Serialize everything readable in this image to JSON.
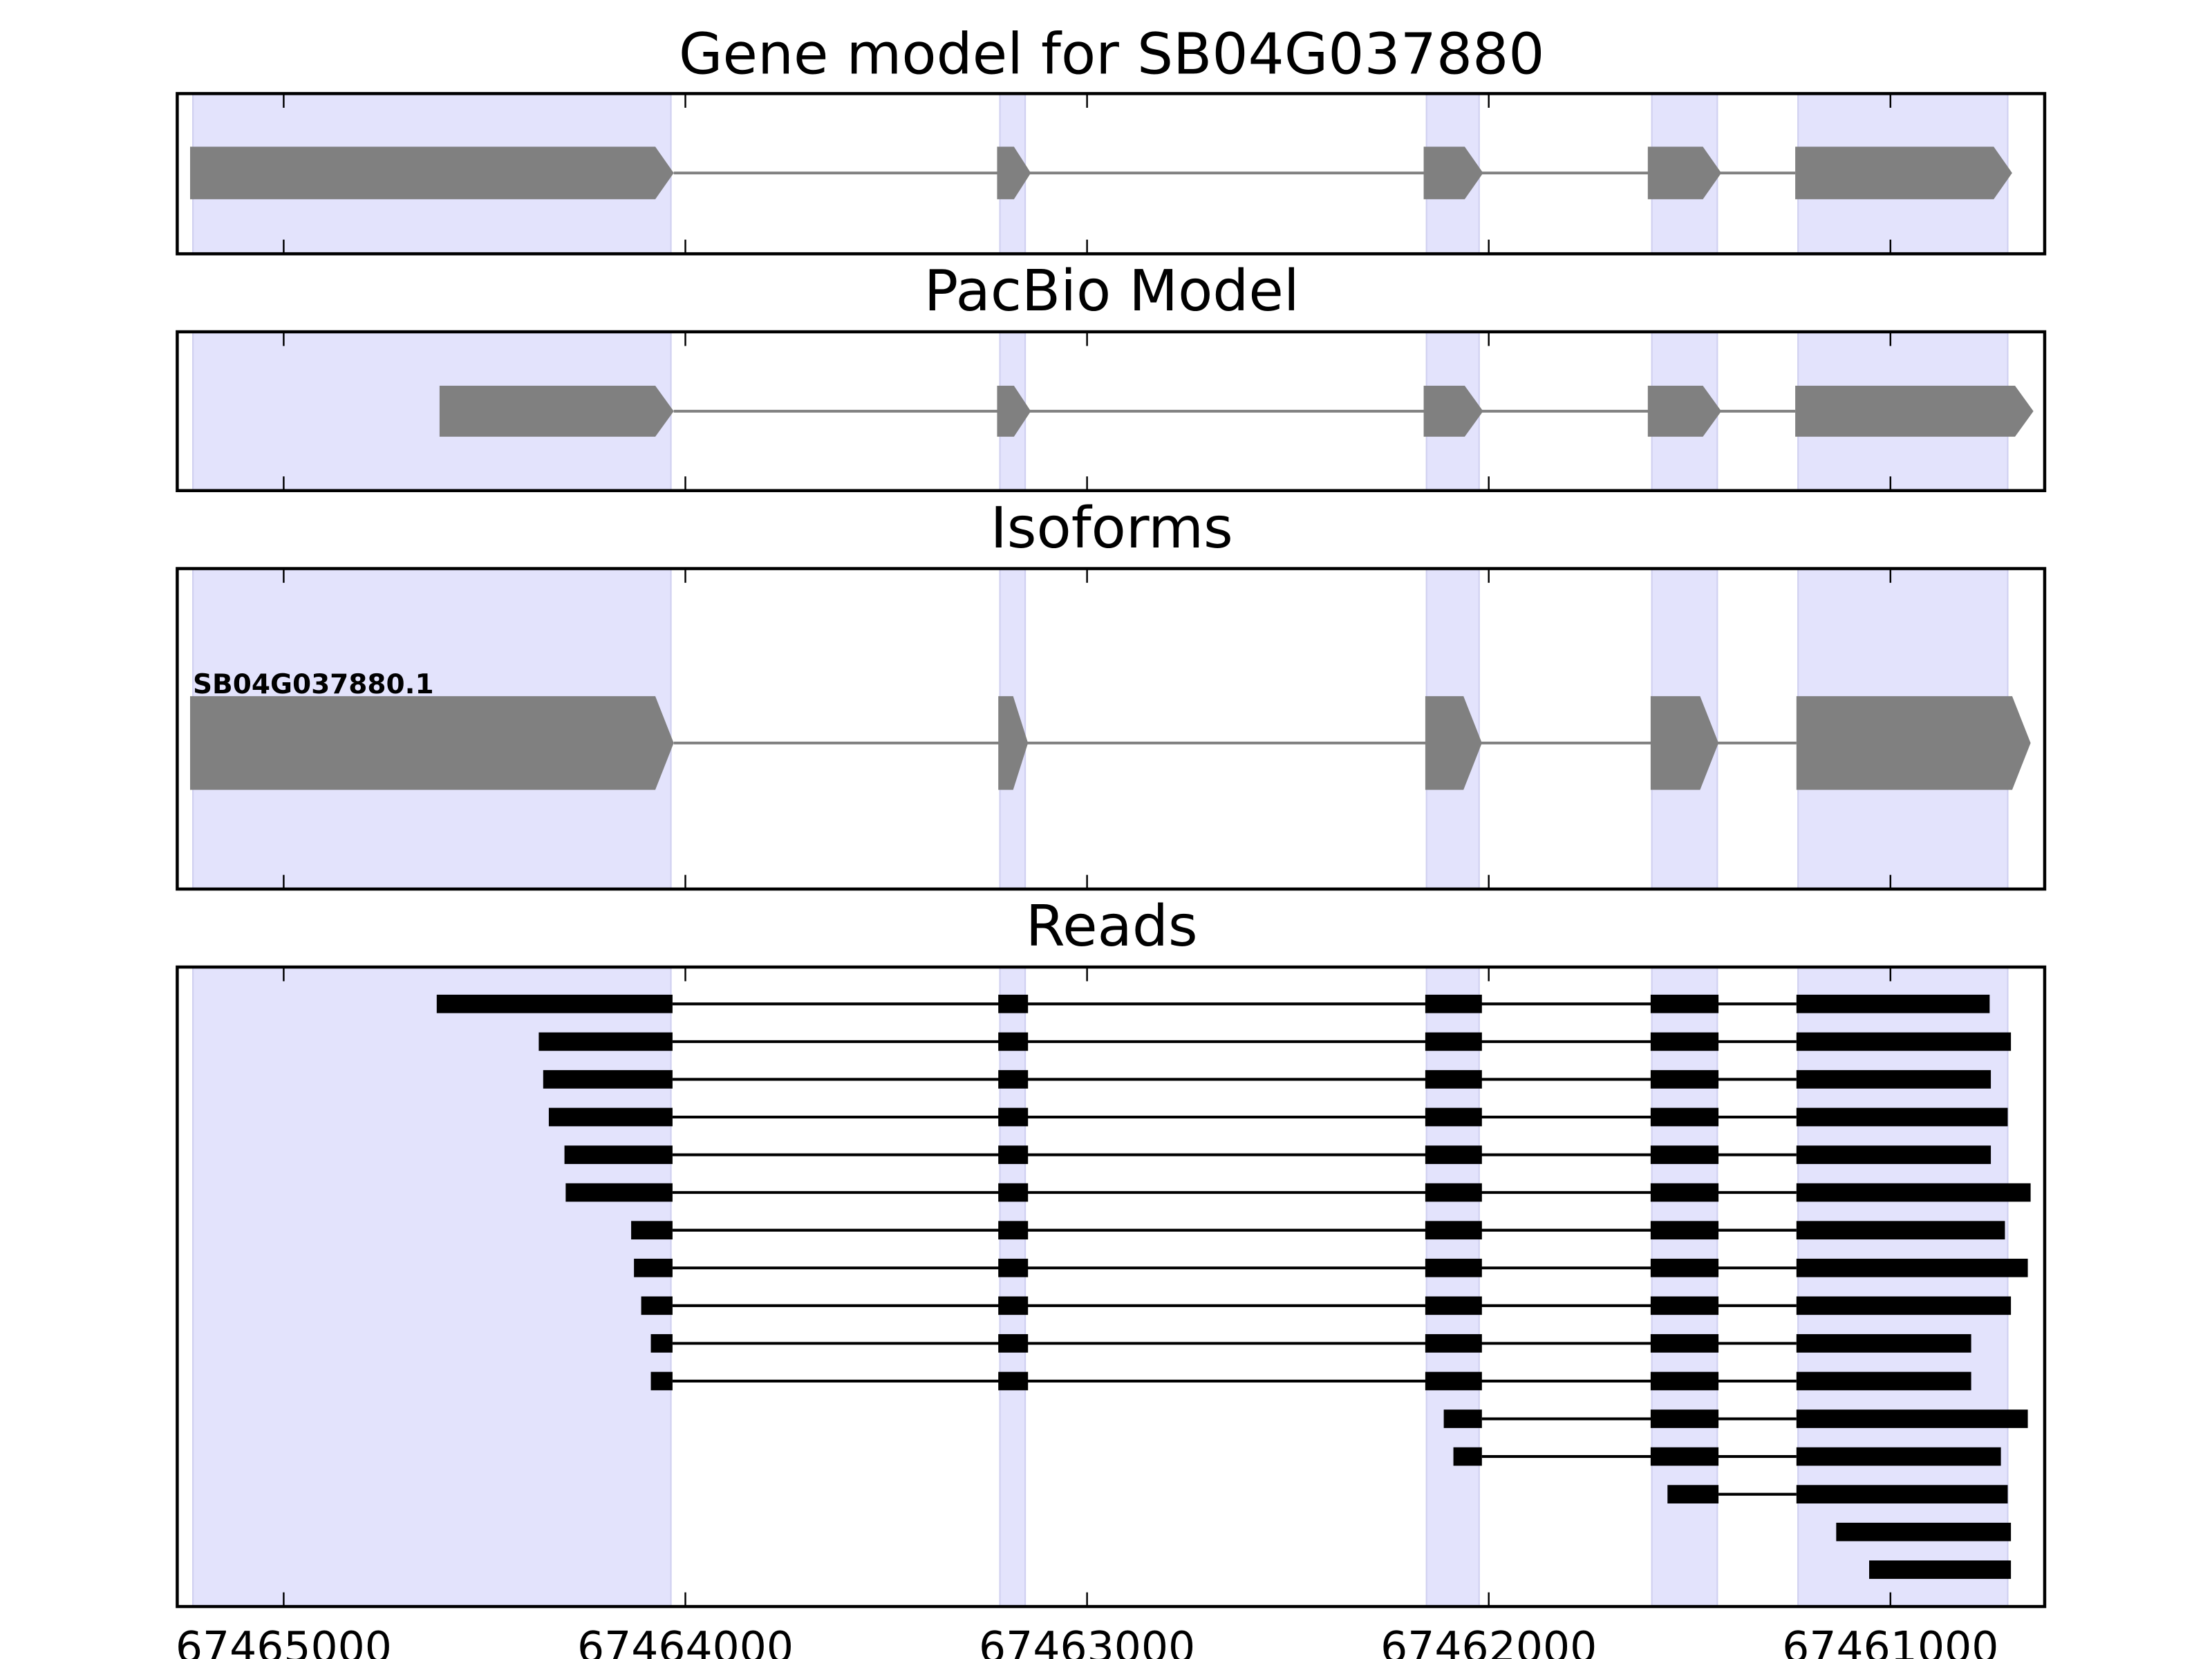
{
  "chart_data": {
    "type": "gene-track",
    "xlim": [
      67465265,
      67460616
    ],
    "x_ticks": [
      67465000,
      67464000,
      67463000,
      67462000,
      67461000
    ],
    "x_tick_labels": [
      "67465000",
      "67464000",
      "67463000",
      "67462000",
      "67461000"
    ],
    "colors": {
      "shade": "#e3e3fc",
      "shade_edge": "#cfcff0",
      "gene": "#808080",
      "read": "#000000"
    },
    "shaded_regions": [
      [
        67465226,
        67464036
      ],
      [
        67463217,
        67463154
      ],
      [
        67462155,
        67462024
      ],
      [
        67461594,
        67461431
      ],
      [
        67461230,
        67460708
      ]
    ],
    "panels": [
      {
        "title": "Gene model for SB04G037880",
        "exons": [
          [
            67465233,
            67464029
          ],
          [
            67463224,
            67463140
          ],
          [
            67462162,
            67462014
          ],
          [
            67461604,
            67461421
          ],
          [
            67461237,
            67460697
          ]
        ]
      },
      {
        "title": "PacBio Model",
        "exons": [
          [
            67464612,
            67464029
          ],
          [
            67463224,
            67463140
          ],
          [
            67462162,
            67462014
          ],
          [
            67461604,
            67461421
          ],
          [
            67461237,
            67460644
          ]
        ]
      },
      {
        "title": "Isoforms",
        "isoform_label": "SB04G037880.1",
        "exons": [
          [
            67465233,
            67464029
          ],
          [
            67463221,
            67463147
          ],
          [
            67462158,
            67462017
          ],
          [
            67461597,
            67461428
          ],
          [
            67461234,
            67460651
          ]
        ]
      },
      {
        "title": "Reads"
      }
    ],
    "reads": [
      [
        [
          67464619,
          67464032
        ],
        [
          67463221,
          67463147
        ],
        [
          67462158,
          67462017
        ],
        [
          67461597,
          67461428
        ],
        [
          67461234,
          67460753
        ]
      ],
      [
        [
          67464365,
          67464032
        ],
        [
          67463221,
          67463147
        ],
        [
          67462158,
          67462017
        ],
        [
          67461597,
          67461428
        ],
        [
          67461234,
          67460700
        ]
      ],
      [
        [
          67464354,
          67464032
        ],
        [
          67463221,
          67463147
        ],
        [
          67462158,
          67462017
        ],
        [
          67461597,
          67461428
        ],
        [
          67461234,
          67460750
        ]
      ],
      [
        [
          67464340,
          67464032
        ],
        [
          67463221,
          67463147
        ],
        [
          67462158,
          67462017
        ],
        [
          67461597,
          67461428
        ],
        [
          67461234,
          67460708
        ]
      ],
      [
        [
          67464301,
          67464032
        ],
        [
          67463221,
          67463147
        ],
        [
          67462158,
          67462017
        ],
        [
          67461597,
          67461428
        ],
        [
          67461234,
          67460750
        ]
      ],
      [
        [
          67464298,
          67464032
        ],
        [
          67463221,
          67463147
        ],
        [
          67462158,
          67462017
        ],
        [
          67461597,
          67461428
        ],
        [
          67461234,
          67460651
        ]
      ],
      [
        [
          67464135,
          67464032
        ],
        [
          67463221,
          67463147
        ],
        [
          67462158,
          67462017
        ],
        [
          67461597,
          67461428
        ],
        [
          67461234,
          67460715
        ]
      ],
      [
        [
          67464128,
          67464032
        ],
        [
          67463221,
          67463147
        ],
        [
          67462158,
          67462017
        ],
        [
          67461597,
          67461428
        ],
        [
          67461234,
          67460658
        ]
      ],
      [
        [
          67464110,
          67464032
        ],
        [
          67463221,
          67463147
        ],
        [
          67462158,
          67462017
        ],
        [
          67461597,
          67461428
        ],
        [
          67461234,
          67460700
        ]
      ],
      [
        [
          67464086,
          67464032
        ],
        [
          67463221,
          67463147
        ],
        [
          67462158,
          67462017
        ],
        [
          67461597,
          67461428
        ],
        [
          67461234,
          67460799
        ]
      ],
      [
        [
          67464086,
          67464032
        ],
        [
          67463221,
          67463147
        ],
        [
          67462158,
          67462017
        ],
        [
          67461597,
          67461428
        ],
        [
          67461234,
          67460799
        ]
      ],
      [
        [
          67462112,
          67462017
        ],
        [
          67461597,
          67461428
        ],
        [
          67461234,
          67460658
        ]
      ],
      [
        [
          67462088,
          67462017
        ],
        [
          67461597,
          67461428
        ],
        [
          67461234,
          67460725
        ]
      ],
      [
        [
          67461555,
          67461428
        ],
        [
          67461234,
          67460708
        ]
      ],
      [
        [
          67461135,
          67460700
        ]
      ],
      [
        [
          67461053,
          67460700
        ]
      ]
    ]
  }
}
